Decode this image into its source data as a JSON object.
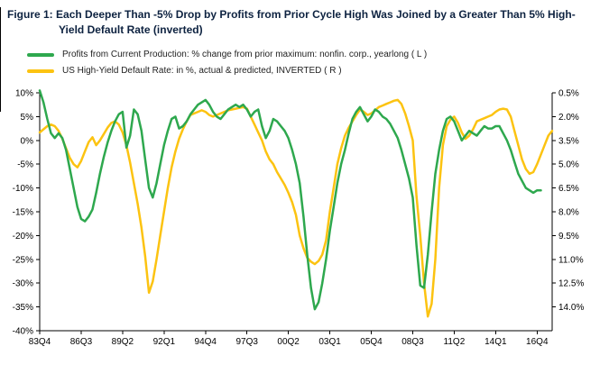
{
  "figure": {
    "prefix": "Figure 1:",
    "title": "Each Deeper Than -5% Drop by Profits from Prior Cycle High Was Joined by a Greater Than 5% High-Yield Default Rate (inverted)"
  },
  "chart_data": {
    "type": "line",
    "x_quarterly_start": "1983Q4",
    "x_frequency": "quarterly",
    "x_tick_labels": [
      "83Q4",
      "86Q3",
      "89Q2",
      "92Q1",
      "94Q4",
      "97Q3",
      "00Q2",
      "03Q1",
      "05Q4",
      "08Q3",
      "11Q2",
      "14Q1",
      "16Q4"
    ],
    "x_tick_indices": [
      0,
      11,
      22,
      33,
      44,
      55,
      66,
      77,
      88,
      99,
      110,
      121,
      132
    ],
    "left_axis": {
      "ticks": [
        "10%",
        "5%",
        "0%",
        "-5%",
        "-10%",
        "-15%",
        "-20%",
        "-25%",
        "-30%",
        "-35%",
        "-40%"
      ],
      "values": [
        10,
        5,
        0,
        -5,
        -10,
        -15,
        -20,
        -25,
        -30,
        -35,
        -40
      ],
      "range": [
        10,
        -40
      ]
    },
    "right_axis": {
      "ticks": [
        "0.5%",
        "2.0%",
        "3.5%",
        "5.0%",
        "6.5%",
        "8.0%",
        "9.5%",
        "11.0%",
        "12.5%",
        "14.0%"
      ],
      "values": [
        0.5,
        2.0,
        3.5,
        5.0,
        6.5,
        8.0,
        9.5,
        11.0,
        12.5,
        14.0
      ],
      "inverted": true
    },
    "grid": false,
    "legend_position": "top-left",
    "series": [
      {
        "name": "Profits from Current Production: % change from prior maximum: nonfin. corp., yearlong ( L )",
        "axis": "left",
        "color": "#2EA84E",
        "values": [
          10.5,
          8,
          4.5,
          1.5,
          0.5,
          1.5,
          0.5,
          -2,
          -6,
          -10,
          -14,
          -16.5,
          -17,
          -16,
          -14.5,
          -11,
          -7,
          -3.5,
          -0.5,
          2,
          4,
          5.5,
          6,
          -1.5,
          1,
          6.5,
          5.5,
          2,
          -4,
          -10,
          -12,
          -9,
          -5,
          -1,
          2,
          4.5,
          5,
          2.5,
          3,
          4,
          5.5,
          6.5,
          7.5,
          8,
          8.5,
          7.5,
          6,
          5,
          4.5,
          5.5,
          6.5,
          7,
          7.5,
          7,
          7.5,
          6.5,
          5,
          6,
          6.5,
          3,
          0.5,
          2,
          4.5,
          4,
          3,
          2,
          0.5,
          -2,
          -5,
          -9,
          -16,
          -24,
          -31,
          -35.5,
          -34,
          -30,
          -25,
          -19,
          -14,
          -9,
          -5,
          -2,
          1.5,
          4.5,
          6,
          7,
          5.5,
          4,
          5,
          6.5,
          6,
          5,
          4.5,
          3.5,
          2,
          0.5,
          -2,
          -5,
          -8,
          -12,
          -22,
          -30.5,
          -31,
          -24,
          -15,
          -7,
          -2,
          2,
          4.5,
          5,
          4,
          2,
          0,
          1,
          2,
          1.5,
          1,
          2,
          3,
          2.5,
          2.5,
          3,
          3,
          1.5,
          0,
          -2,
          -4.5,
          -7,
          -8.5,
          -10,
          -10.5,
          -11,
          -10.5,
          -10.5
        ]
      },
      {
        "name": "US High-Yield Default Rate: in %, actual & predicted, INVERTED ( R )",
        "axis": "right",
        "color": "#FCC311",
        "values": [
          3,
          2.8,
          2.6,
          2.5,
          2.6,
          2.9,
          3.4,
          4,
          4.6,
          5,
          5.2,
          4.8,
          4.2,
          3.6,
          3.3,
          3.8,
          3.5,
          3.1,
          2.7,
          2.4,
          2.3,
          2.5,
          3,
          3.8,
          4.9,
          6.2,
          7.5,
          9,
          10.8,
          13.1,
          12.4,
          11,
          9.5,
          8,
          6.5,
          5.2,
          4.2,
          3.4,
          2.8,
          2.3,
          1.9,
          1.8,
          1.7,
          1.6,
          1.7,
          1.9,
          2,
          1.9,
          1.8,
          1.7,
          1.6,
          1.55,
          1.5,
          1.45,
          1.4,
          1.5,
          2,
          2.5,
          3,
          3.5,
          4.2,
          4.7,
          5,
          5.5,
          5.9,
          6.3,
          6.8,
          7.4,
          8.2,
          9.5,
          10.3,
          10.9,
          11.15,
          11.3,
          11.1,
          10.7,
          9.8,
          8,
          6.5,
          5,
          4,
          3.2,
          2.7,
          2.3,
          1.9,
          1.55,
          1.7,
          1.9,
          1.8,
          1.6,
          1.4,
          1.3,
          1.2,
          1.1,
          1,
          0.95,
          1.2,
          1.8,
          2.6,
          3.5,
          7,
          9.5,
          12.5,
          14.6,
          13.8,
          11,
          6.5,
          3.8,
          2.6,
          2.2,
          2,
          2.4,
          3,
          3.4,
          3.2,
          2.8,
          2.3,
          2.2,
          2.1,
          2,
          1.9,
          1.7,
          1.55,
          1.5,
          1.55,
          2,
          2.9,
          3.8,
          4.7,
          5.3,
          5.6,
          5.5,
          5,
          4.4,
          3.8,
          3.2,
          2.9
        ]
      }
    ]
  }
}
